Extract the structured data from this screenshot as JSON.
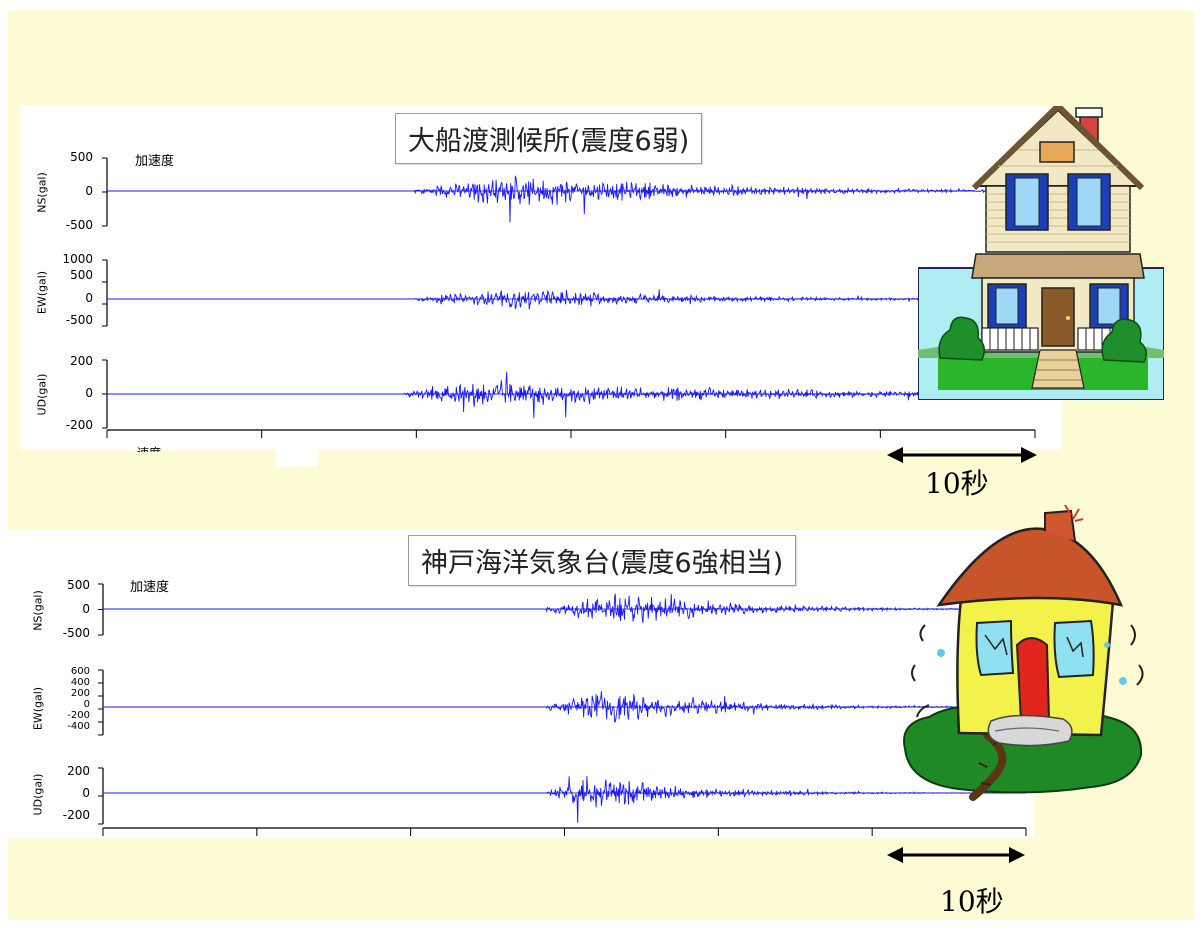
{
  "colors": {
    "background": "#fdfbd4",
    "trace": "#1a1aff",
    "zero_line": "#3333ff"
  },
  "icons": [
    "house-intact-icon",
    "house-damaged-icon",
    "double-arrow-icon"
  ],
  "chart_data": [
    {
      "type": "line",
      "title": "大船渡測候所(震度6弱)",
      "accel_label": "加速度",
      "partial_label": "速度",
      "scale_label": "10秒",
      "series": [
        {
          "name": "NS(gal)",
          "ylim": [
            -600,
            600
          ],
          "yticks": [
            "500",
            "0",
            "-500"
          ],
          "amplitude": 420,
          "onset": 0.33,
          "peak": 0.44,
          "decay": 0.2
        },
        {
          "name": "EW(gal)",
          "ylim": [
            -600,
            1200
          ],
          "yticks": [
            "1000",
            "500",
            "0",
            "-500"
          ],
          "amplitude": 420,
          "onset": 0.33,
          "peak": 0.44,
          "decay": 0.18
        },
        {
          "name": "UD(gal)",
          "ylim": [
            -250,
            250
          ],
          "yticks": [
            "200",
            "0",
            "-200"
          ],
          "amplitude": 150,
          "onset": 0.32,
          "peak": 0.4,
          "decay": 0.3
        }
      ]
    },
    {
      "type": "line",
      "title": "神戸海洋気象台(震度6強相当)",
      "accel_label": "加速度",
      "scale_label": "10秒",
      "series": [
        {
          "name": "NS(gal)",
          "ylim": [
            -700,
            700
          ],
          "yticks": [
            "500",
            "0",
            "-500"
          ],
          "amplitude": 650,
          "onset": 0.48,
          "peak": 0.56,
          "decay": 0.12
        },
        {
          "name": "EW(gal)",
          "ylim": [
            -500,
            650
          ],
          "yticks": [
            "600",
            "400",
            "200",
            "0",
            "-200",
            "-400"
          ],
          "amplitude": 430,
          "onset": 0.48,
          "peak": 0.54,
          "decay": 0.12
        },
        {
          "name": "UD(gal)",
          "ylim": [
            -320,
            320
          ],
          "yticks": [
            "200",
            "0",
            "-200"
          ],
          "amplitude": 300,
          "onset": 0.48,
          "peak": 0.53,
          "decay": 0.1
        }
      ]
    }
  ]
}
